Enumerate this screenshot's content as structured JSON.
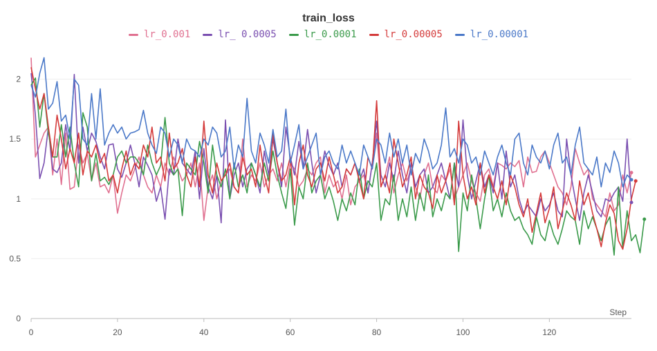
{
  "chart_data": {
    "type": "line",
    "title": "train_loss",
    "xlabel": "Step",
    "ylabel": "",
    "xlim": [
      0,
      139
    ],
    "ylim": [
      0,
      2.2
    ],
    "xticks": [
      0,
      20,
      40,
      60,
      80,
      100,
      120
    ],
    "yticks": [
      0,
      0.5,
      1,
      1.5,
      2
    ],
    "ytick_labels": [
      "0",
      "0.5",
      "1",
      "1.5",
      "2"
    ],
    "grid": true,
    "legend": "top",
    "series": [
      {
        "name": "lr_0.001",
        "color": "#e07090",
        "values": [
          2.18,
          1.35,
          1.45,
          1.55,
          1.6,
          1.2,
          1.5,
          1.12,
          1.55,
          1.08,
          1.1,
          1.45,
          1.3,
          1.38,
          1.15,
          1.3,
          1.1,
          1.12,
          1.05,
          1.2,
          0.88,
          1.05,
          1.2,
          1.15,
          1.25,
          1.35,
          1.2,
          1.1,
          1.05,
          1.2,
          1.1,
          1.3,
          1.2,
          1.35,
          1.25,
          1.15,
          1.2,
          1.3,
          1.1,
          1.3,
          0.82,
          1.1,
          1.2,
          1.0,
          1.15,
          1.2,
          1.25,
          1.1,
          1.05,
          1.5,
          1.1,
          1.2,
          1.15,
          1.3,
          1.1,
          1.2,
          1.25,
          1.15,
          1.3,
          1.1,
          1.3,
          1.25,
          1.1,
          1.15,
          1.25,
          1.2,
          1.3,
          1.35,
          1.05,
          1.2,
          1.1,
          1.15,
          1.0,
          1.2,
          0.95,
          1.1,
          1.15,
          1.2,
          1.05,
          1.3,
          1.55,
          1.1,
          1.2,
          1.35,
          1.05,
          1.2,
          1.3,
          1.15,
          1.25,
          1.1,
          1.0,
          1.2,
          1.3,
          1.1,
          1.05,
          1.2,
          1.15,
          1.25,
          1.0,
          1.1,
          1.2,
          1.3,
          1.15,
          1.05,
          0.98,
          1.2,
          1.25,
          1.1,
          1.3,
          1.28,
          1.25,
          1.3,
          1.27,
          1.32,
          1.1,
          1.35,
          1.22,
          1.23,
          1.35,
          1.4,
          1.3,
          1.2,
          1.1,
          1.05,
          0.95,
          1.1,
          1.42,
          1.3,
          1.2,
          1.25,
          1.0,
          0.95,
          0.9,
          0.85,
          1.05,
          0.9,
          0.95,
          1.2,
          1.05,
          1.22
        ]
      },
      {
        "name": "lr_ 0.0005",
        "color": "#7a4fb0",
        "values": [
          2.05,
          1.7,
          1.17,
          1.3,
          1.6,
          1.25,
          1.22,
          1.3,
          1.62,
          1.4,
          2.04,
          1.3,
          1.6,
          1.4,
          1.55,
          1.48,
          1.35,
          1.25,
          1.45,
          1.46,
          1.25,
          1.18,
          1.3,
          1.45,
          1.3,
          1.1,
          1.35,
          1.28,
          1.2,
          0.98,
          1.1,
          0.83,
          1.25,
          1.2,
          1.5,
          1.3,
          1.25,
          1.2,
          1.4,
          1.0,
          1.42,
          1.1,
          1.0,
          1.2,
          0.8,
          1.66,
          1.0,
          1.2,
          1.3,
          1.1,
          1.25,
          1.3,
          1.2,
          1.05,
          1.4,
          1.2,
          1.5,
          1.3,
          1.1,
          1.6,
          1.35,
          1.2,
          1.48,
          1.25,
          1.58,
          1.3,
          1.05,
          1.2,
          1.4,
          1.28,
          1.2,
          1.3,
          1.1,
          1.25,
          1.2,
          1.3,
          1.15,
          1.25,
          1.05,
          1.3,
          1.65,
          1.2,
          1.1,
          1.3,
          1.15,
          1.4,
          1.2,
          1.05,
          1.3,
          1.1,
          1.2,
          1.25,
          1.05,
          1.1,
          1.2,
          1.3,
          1.15,
          1.0,
          1.3,
          1.1,
          1.66,
          1.2,
          1.0,
          1.15,
          1.3,
          1.1,
          1.2,
          1.05,
          1.3,
          1.0,
          1.4,
          1.1,
          1.2,
          1.0,
          0.88,
          0.95,
          0.9,
          0.85,
          1.0,
          0.9,
          0.95,
          1.05,
          0.9,
          0.85,
          1.5,
          1.2,
          1.0,
          0.82,
          1.05,
          1.2,
          1.05,
          0.9,
          0.85,
          1.0,
          0.98,
          1.05,
          1.1,
          0.98,
          1.5,
          0.97
        ]
      },
      {
        "name": "lr_0.0001",
        "color": "#3a9a4a",
        "values": [
          1.95,
          2.01,
          1.6,
          1.88,
          1.55,
          1.35,
          1.35,
          1.62,
          1.35,
          1.6,
          1.3,
          1.1,
          1.72,
          1.6,
          1.15,
          1.38,
          1.15,
          1.18,
          1.12,
          1.2,
          1.35,
          1.4,
          1.3,
          1.35,
          1.35,
          1.3,
          1.2,
          1.45,
          1.3,
          1.2,
          1.28,
          1.68,
          1.3,
          1.2,
          1.25,
          0.86,
          1.3,
          1.25,
          1.2,
          1.48,
          1.3,
          1.05,
          1.45,
          1.2,
          1.1,
          1.25,
          1.0,
          1.3,
          1.1,
          1.2,
          1.05,
          1.3,
          1.2,
          1.1,
          1.3,
          1.15,
          1.4,
          1.2,
          1.05,
          0.92,
          1.25,
          0.78,
          1.1,
          1.0,
          1.3,
          1.05,
          1.15,
          1.2,
          1.0,
          1.1,
          0.98,
          0.82,
          1.0,
          0.9,
          1.05,
          0.95,
          1.25,
          1.0,
          1.15,
          1.1,
          1.3,
          0.82,
          1.0,
          0.95,
          1.2,
          0.82,
          1.0,
          0.85,
          1.1,
          0.82,
          1.05,
          0.9,
          1.2,
          0.85,
          1.0,
          0.9,
          1.05,
          1.0,
          1.3,
          0.56,
          1.05,
          0.9,
          1.2,
          1.0,
          0.75,
          1.0,
          1.2,
          0.9,
          1.0,
          0.85,
          1.05,
          0.9,
          0.82,
          0.85,
          0.75,
          0.7,
          0.62,
          0.85,
          0.7,
          0.65,
          0.82,
          0.7,
          0.62,
          0.75,
          0.9,
          0.85,
          0.82,
          0.62,
          0.9,
          0.75,
          0.85,
          0.75,
          0.65,
          0.78,
          0.85,
          0.53,
          1.1,
          0.58,
          0.9,
          0.65,
          0.7,
          0.55,
          0.83
        ]
      },
      {
        "name": "lr_0.00005",
        "color": "#d43a3a",
        "values": [
          2.1,
          1.92,
          1.75,
          1.88,
          1.6,
          1.35,
          1.7,
          1.5,
          1.25,
          1.42,
          1.3,
          1.55,
          1.2,
          1.4,
          1.35,
          1.45,
          1.3,
          1.38,
          1.15,
          1.2,
          1.05,
          1.25,
          1.4,
          1.2,
          1.3,
          1.25,
          1.45,
          1.35,
          1.6,
          1.3,
          1.35,
          1.15,
          1.55,
          1.25,
          1.3,
          1.42,
          1.2,
          1.1,
          1.35,
          1.1,
          1.65,
          1.2,
          1.05,
          1.3,
          1.15,
          1.2,
          1.3,
          1.1,
          1.05,
          1.35,
          1.2,
          1.25,
          1.1,
          1.45,
          1.2,
          1.05,
          1.55,
          1.3,
          1.15,
          1.2,
          1.35,
          0.95,
          1.3,
          1.45,
          1.2,
          1.1,
          1.25,
          1.3,
          1.15,
          1.35,
          1.2,
          1.05,
          1.1,
          1.25,
          1.2,
          1.3,
          1.15,
          1.0,
          1.35,
          1.25,
          1.82,
          1.1,
          1.2,
          1.05,
          1.5,
          1.3,
          1.1,
          1.2,
          1.35,
          1.0,
          1.2,
          1.1,
          1.05,
          0.92,
          1.2,
          1.05,
          1.15,
          1.3,
          0.95,
          1.65,
          1.2,
          1.0,
          1.1,
          0.95,
          1.3,
          1.05,
          1.2,
          1.1,
          1.0,
          1.15,
          0.95,
          1.2,
          1.1,
          0.95,
          0.85,
          1.0,
          0.72,
          0.88,
          1.05,
          0.8,
          0.92,
          1.1,
          0.75,
          0.9,
          1.05,
          0.95,
          0.82,
          1.15,
          0.95,
          1.05,
          0.88,
          0.75,
          0.6,
          0.8,
          0.95,
          0.88,
          0.65,
          0.58,
          0.75,
          1.0,
          1.15
        ]
      },
      {
        "name": "lr_0.00001",
        "color": "#4a78c8",
        "values": [
          1.95,
          1.85,
          2.05,
          2.18,
          1.75,
          1.8,
          1.98,
          1.65,
          1.7,
          1.5,
          2.0,
          1.95,
          1.5,
          1.45,
          1.88,
          1.5,
          1.92,
          1.45,
          1.55,
          1.62,
          1.55,
          1.6,
          1.5,
          1.55,
          1.56,
          1.58,
          1.74,
          1.55,
          1.45,
          1.38,
          1.6,
          1.55,
          1.35,
          1.5,
          1.45,
          1.3,
          1.5,
          1.42,
          1.4,
          1.35,
          1.5,
          1.45,
          1.6,
          1.55,
          1.35,
          1.4,
          1.6,
          1.25,
          1.45,
          1.35,
          1.84,
          1.4,
          1.3,
          1.55,
          1.45,
          1.3,
          1.58,
          1.35,
          1.4,
          1.75,
          1.3,
          1.45,
          1.62,
          1.25,
          1.35,
          1.45,
          1.55,
          1.2,
          1.35,
          1.4,
          1.3,
          1.25,
          1.45,
          1.3,
          1.4,
          1.3,
          1.2,
          1.45,
          1.35,
          1.25,
          1.5,
          1.45,
          1.3,
          1.55,
          1.35,
          1.5,
          1.3,
          1.45,
          1.2,
          1.38,
          1.3,
          1.5,
          1.4,
          1.25,
          1.3,
          1.45,
          1.76,
          1.35,
          1.42,
          1.3,
          1.5,
          1.45,
          1.3,
          1.35,
          1.2,
          1.4,
          1.3,
          1.2,
          1.35,
          1.45,
          1.3,
          1.2,
          1.5,
          1.55,
          1.3,
          1.2,
          1.45,
          1.35,
          1.3,
          1.4,
          1.25,
          1.45,
          1.55,
          1.3,
          1.35,
          1.2,
          1.45,
          1.6,
          1.3,
          1.25,
          1.2,
          1.35,
          1.1,
          1.3,
          1.22,
          1.4,
          1.3,
          1.1,
          1.2,
          1.16
        ]
      }
    ]
  }
}
